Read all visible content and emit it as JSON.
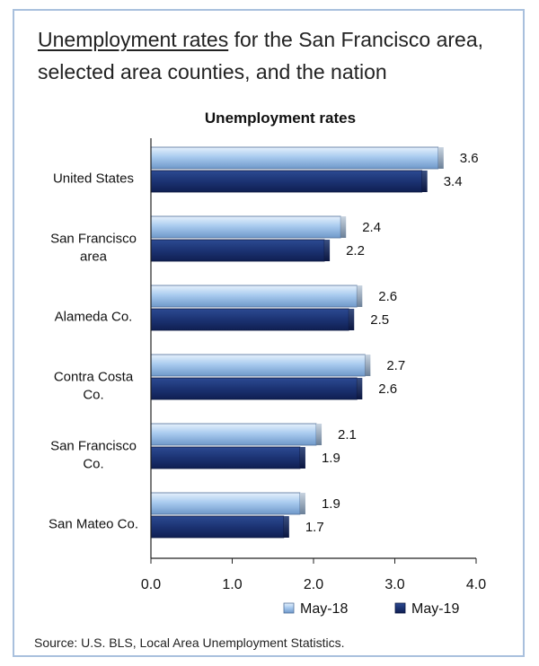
{
  "title": {
    "underlined": "Unemployment rates",
    "rest": " for the San Francisco area, selected area counties, and the nation"
  },
  "chart_data": {
    "type": "bar",
    "orientation": "horizontal",
    "title": "Unemployment rates",
    "categories": [
      [
        "United States"
      ],
      [
        "San Francisco",
        "area"
      ],
      [
        "Alameda Co."
      ],
      [
        "Contra Costa",
        "Co."
      ],
      [
        "San Francisco",
        "Co."
      ],
      [
        "San Mateo Co."
      ]
    ],
    "series": [
      {
        "name": "May-18",
        "values": [
          3.6,
          2.4,
          2.6,
          2.7,
          2.1,
          1.9
        ],
        "color": "#9fc3ea",
        "value_labels": [
          "3.6",
          "2.4",
          "2.6",
          "2.7",
          "2.1",
          "1.9"
        ]
      },
      {
        "name": "May-19",
        "values": [
          3.4,
          2.2,
          2.5,
          2.6,
          1.9,
          1.7
        ],
        "color": "#1f3a7a",
        "value_labels": [
          "3.4",
          "2.2",
          "2.5",
          "2.6",
          "1.9",
          "1.7"
        ]
      }
    ],
    "xlim": [
      0,
      4
    ],
    "xticks": [
      0,
      1,
      2,
      3,
      4
    ],
    "xtick_labels": [
      "0.0",
      "1.0",
      "2.0",
      "3.0",
      "4.0"
    ],
    "legend_position": "bottom-right"
  },
  "source": "Source: U.S. BLS, Local Area Unemployment Statistics."
}
